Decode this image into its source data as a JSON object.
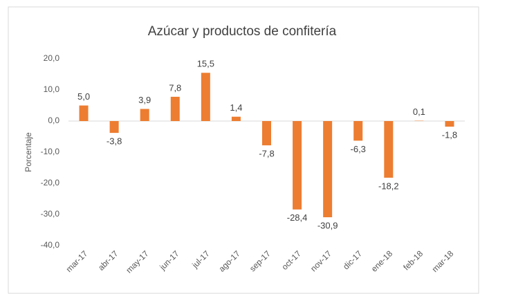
{
  "chart_data": {
    "type": "bar",
    "title": "Azúcar y productos de confitería",
    "y_label": "Porcentaje",
    "categories": [
      "mar-17",
      "abr-17",
      "may-17",
      "jun-17",
      "jul-17",
      "ago-17",
      "sep-17",
      "oct-17",
      "nov-17",
      "dic-17",
      "ene-18",
      "feb-18",
      "mar-18"
    ],
    "values": [
      5.0,
      -3.8,
      3.9,
      7.8,
      15.5,
      1.4,
      -7.8,
      -28.4,
      -30.9,
      -6.3,
      -18.2,
      0.1,
      -1.8
    ],
    "value_labels": [
      "5,0",
      "-3,8",
      "3,9",
      "7,8",
      "15,5",
      "1,4",
      "-7,8",
      "-28,4",
      "-30,9",
      "-6,3",
      "-18,2",
      "0,1",
      "-1,8"
    ],
    "color": "#ed7d31",
    "ylim": [
      -40,
      20
    ],
    "yticks": [
      {
        "value": 20,
        "label": "20,0"
      },
      {
        "value": 10,
        "label": "10,0"
      },
      {
        "value": 0,
        "label": "0,0"
      },
      {
        "value": -10,
        "label": "-10,0"
      },
      {
        "value": -20,
        "label": "-20,0"
      },
      {
        "value": -30,
        "label": "-30,0"
      },
      {
        "value": -40,
        "label": "-40,0"
      }
    ],
    "grid": false
  }
}
